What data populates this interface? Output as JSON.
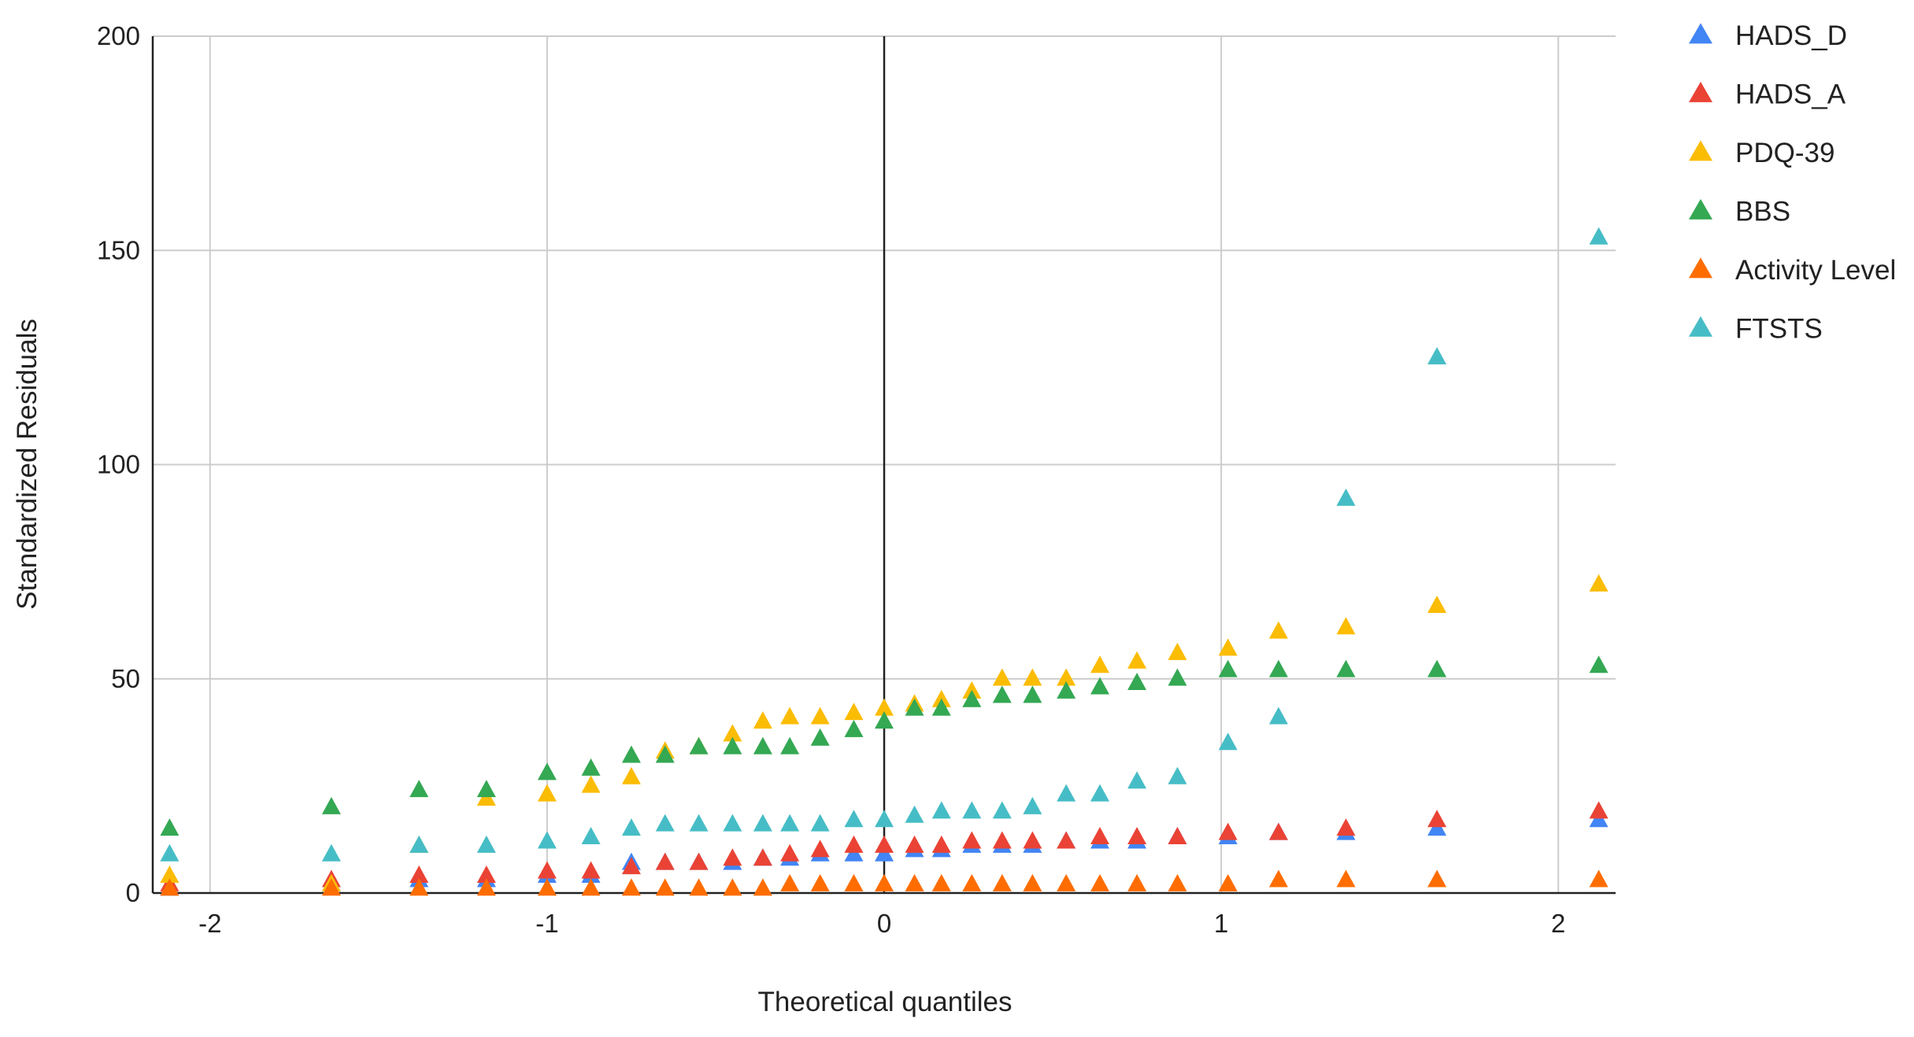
{
  "chart_data": {
    "type": "scatter",
    "title": "",
    "xlabel": "Theoretical quantiles",
    "ylabel": "Standardized Residuals",
    "xlim": [
      -2.17,
      2.17
    ],
    "ylim": [
      0,
      200
    ],
    "xticks": [
      -2,
      -1,
      0,
      1,
      2
    ],
    "xtick_labels": [
      "-2",
      "-1",
      "0",
      "1",
      "2"
    ],
    "yticks": [
      0,
      50,
      100,
      150,
      200
    ],
    "ytick_labels": [
      "0",
      "50",
      "100",
      "150",
      "200"
    ],
    "grid": true,
    "legend_position": "right",
    "marker": "triangle",
    "x": [
      -2.12,
      -1.64,
      -1.38,
      -1.18,
      -1.0,
      -0.87,
      -0.75,
      -0.65,
      -0.55,
      -0.45,
      -0.36,
      -0.28,
      -0.19,
      -0.09,
      0.0,
      0.09,
      0.17,
      0.26,
      0.35,
      0.44,
      0.54,
      0.64,
      0.75,
      0.87,
      1.02,
      1.17,
      1.37,
      1.64,
      2.12
    ],
    "series": [
      {
        "name": "HADS_D",
        "color": "#4285F4",
        "values": [
          1,
          2,
          3,
          3,
          4,
          4,
          7,
          7,
          7,
          7,
          8,
          8,
          9,
          9,
          9,
          10,
          10,
          11,
          11,
          11,
          12,
          12,
          12,
          13,
          13,
          14,
          14,
          15,
          17
        ]
      },
      {
        "name": "HADS_A",
        "color": "#EA4335",
        "values": [
          2,
          3,
          4,
          4,
          5,
          5,
          6,
          7,
          7,
          8,
          8,
          9,
          10,
          11,
          11,
          11,
          11,
          12,
          12,
          12,
          12,
          13,
          13,
          13,
          14,
          14,
          15,
          17,
          19
        ]
      },
      {
        "name": "PDQ-39",
        "color": "#FBBC04",
        "values": [
          4,
          2,
          11,
          22,
          23,
          25,
          27,
          33,
          34,
          37,
          40,
          41,
          41,
          42,
          43,
          44,
          45,
          47,
          50,
          50,
          50,
          53,
          54,
          56,
          57,
          61,
          62,
          67,
          72
        ]
      },
      {
        "name": "BBS",
        "color": "#34A853",
        "values": [
          15,
          20,
          24,
          24,
          28,
          29,
          32,
          32,
          34,
          34,
          34,
          34,
          36,
          38,
          40,
          43,
          43,
          45,
          46,
          46,
          47,
          48,
          49,
          50,
          52,
          52,
          52,
          52,
          53
        ]
      },
      {
        "name": "Activity Level",
        "color": "#FF6D01",
        "values": [
          1,
          1,
          1,
          1,
          1,
          1,
          1,
          1,
          1,
          1,
          1,
          2,
          2,
          2,
          2,
          2,
          2,
          2,
          2,
          2,
          2,
          2,
          2,
          2,
          2,
          3,
          3,
          3,
          3
        ]
      },
      {
        "name": "FTSTS",
        "color": "#46BDC6",
        "values": [
          9,
          9,
          11,
          11,
          12,
          13,
          15,
          16,
          16,
          16,
          16,
          16,
          16,
          17,
          17,
          18,
          19,
          19,
          19,
          20,
          23,
          23,
          26,
          27,
          35,
          41,
          92,
          125,
          153
        ]
      }
    ]
  }
}
